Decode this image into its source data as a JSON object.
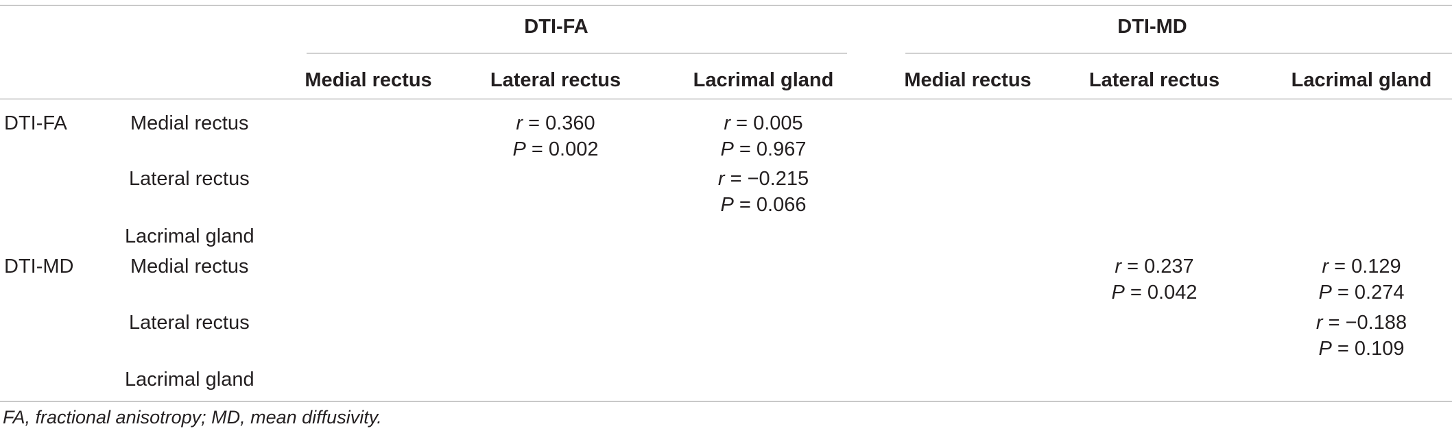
{
  "table": {
    "group_headers": [
      "DTI-FA",
      "DTI-MD"
    ],
    "column_headers": [
      "Medial rectus",
      "Lateral rectus",
      "Lacrimal gland",
      "Medial rectus",
      "Lateral rectus",
      "Lacrimal gland"
    ],
    "row_groups": [
      "DTI-FA",
      "DTI-MD"
    ],
    "row_labels": [
      "Medial rectus",
      "Lateral rectus",
      "Lacrimal gland",
      "Medial rectus",
      "Lateral rectus",
      "Lacrimal gland"
    ],
    "cells": [
      {
        "row": 0,
        "col": 1,
        "r": "= 0.360",
        "p": "= 0.002"
      },
      {
        "row": 0,
        "col": 2,
        "r": "= 0.005",
        "p": "= 0.967"
      },
      {
        "row": 1,
        "col": 2,
        "r": "= −0.215",
        "p": "= 0.066"
      },
      {
        "row": 3,
        "col": 4,
        "r": "= 0.237",
        "p": "= 0.042"
      },
      {
        "row": 3,
        "col": 5,
        "r": "= 0.129",
        "p": "= 0.274"
      },
      {
        "row": 4,
        "col": 5,
        "r": "= −0.188",
        "p": "= 0.109"
      }
    ],
    "r_symbol": "r",
    "p_symbol": "P"
  },
  "footnote": "FA, fractional anisotropy; MD, mean diffusivity."
}
